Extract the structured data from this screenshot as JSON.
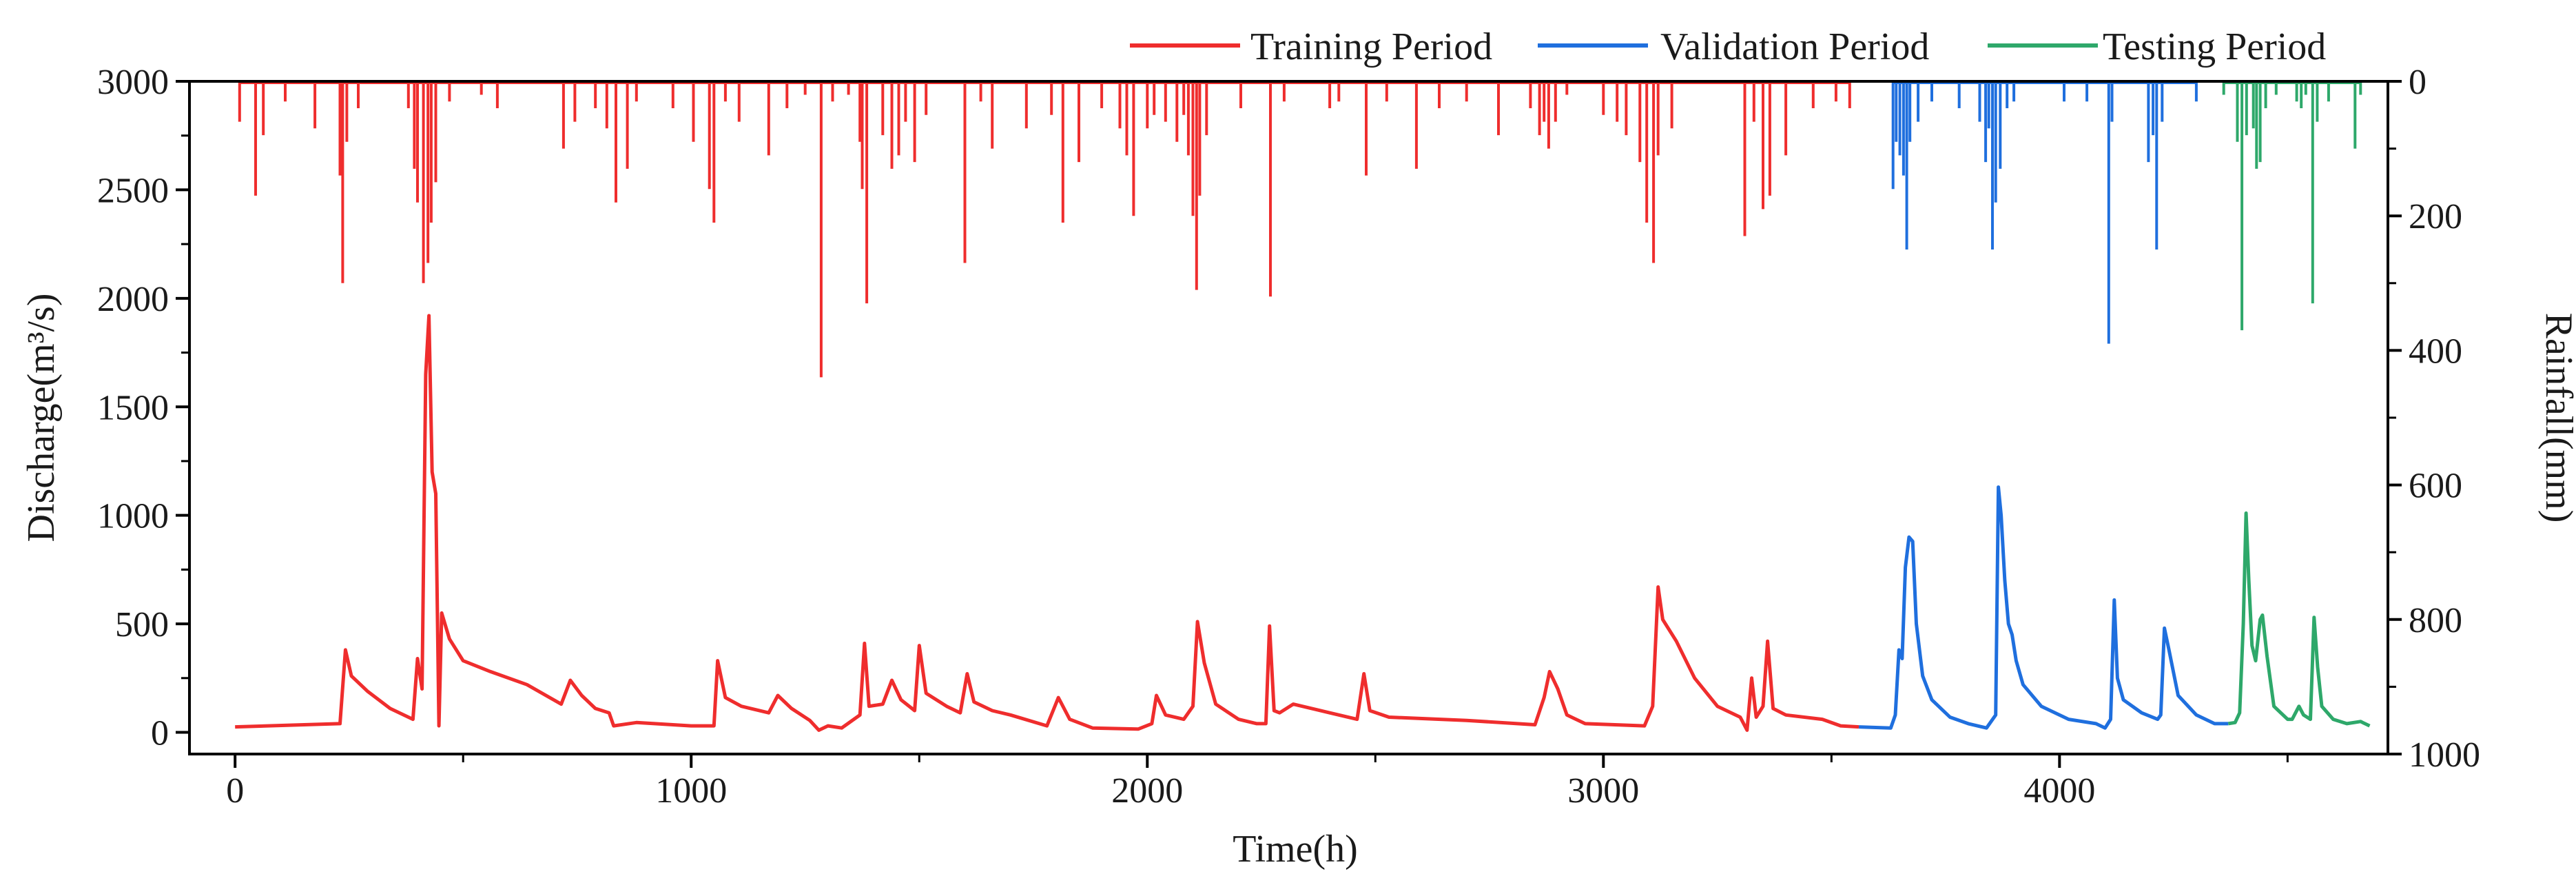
{
  "chart_data": {
    "type": "line",
    "title": "",
    "xlabel": "Time(h)",
    "ylabel_left": "Discharge(m³/s)",
    "ylabel_right": "Rainfall(mm)",
    "xlim": [
      -100,
      4720
    ],
    "ylim_left": [
      -100,
      3000
    ],
    "ylim_right_reversed": [
      1000,
      0
    ],
    "x_ticks": [
      0,
      1000,
      2000,
      3000,
      4000
    ],
    "y_left_ticks": [
      0,
      500,
      1000,
      1500,
      2000,
      2500,
      3000
    ],
    "y_right_ticks": [
      0,
      200,
      400,
      600,
      800,
      1000
    ],
    "legend_position": "top",
    "series": [
      {
        "name": "Training Period",
        "color": "#ef2d2d",
        "discharge": [
          [
            0,
            25
          ],
          [
            230,
            40
          ],
          [
            242,
            380
          ],
          [
            255,
            260
          ],
          [
            290,
            190
          ],
          [
            340,
            110
          ],
          [
            390,
            60
          ],
          [
            400,
            340
          ],
          [
            410,
            200
          ],
          [
            418,
            1650
          ],
          [
            425,
            1920
          ],
          [
            432,
            1200
          ],
          [
            440,
            1100
          ],
          [
            447,
            30
          ],
          [
            453,
            550
          ],
          [
            470,
            430
          ],
          [
            500,
            330
          ],
          [
            560,
            280
          ],
          [
            640,
            220
          ],
          [
            715,
            130
          ],
          [
            735,
            240
          ],
          [
            760,
            170
          ],
          [
            790,
            110
          ],
          [
            820,
            90
          ],
          [
            830,
            30
          ],
          [
            880,
            45
          ],
          [
            1000,
            30
          ],
          [
            1050,
            30
          ],
          [
            1058,
            330
          ],
          [
            1075,
            160
          ],
          [
            1110,
            120
          ],
          [
            1170,
            90
          ],
          [
            1190,
            170
          ],
          [
            1220,
            110
          ],
          [
            1260,
            55
          ],
          [
            1280,
            10
          ],
          [
            1300,
            30
          ],
          [
            1330,
            20
          ],
          [
            1370,
            80
          ],
          [
            1380,
            410
          ],
          [
            1390,
            120
          ],
          [
            1420,
            130
          ],
          [
            1440,
            240
          ],
          [
            1460,
            150
          ],
          [
            1490,
            100
          ],
          [
            1500,
            400
          ],
          [
            1515,
            180
          ],
          [
            1560,
            120
          ],
          [
            1590,
            90
          ],
          [
            1605,
            270
          ],
          [
            1620,
            140
          ],
          [
            1660,
            100
          ],
          [
            1700,
            80
          ],
          [
            1780,
            30
          ],
          [
            1805,
            160
          ],
          [
            1830,
            60
          ],
          [
            1880,
            20
          ],
          [
            1980,
            15
          ],
          [
            2010,
            40
          ],
          [
            2020,
            170
          ],
          [
            2040,
            80
          ],
          [
            2080,
            60
          ],
          [
            2100,
            120
          ],
          [
            2110,
            510
          ],
          [
            2125,
            320
          ],
          [
            2150,
            130
          ],
          [
            2200,
            60
          ],
          [
            2240,
            40
          ],
          [
            2260,
            40
          ],
          [
            2268,
            490
          ],
          [
            2278,
            100
          ],
          [
            2290,
            90
          ],
          [
            2320,
            130
          ],
          [
            2400,
            90
          ],
          [
            2460,
            60
          ],
          [
            2475,
            270
          ],
          [
            2488,
            100
          ],
          [
            2530,
            70
          ],
          [
            2700,
            55
          ],
          [
            2850,
            35
          ],
          [
            2870,
            160
          ],
          [
            2882,
            280
          ],
          [
            2900,
            200
          ],
          [
            2920,
            80
          ],
          [
            2960,
            40
          ],
          [
            3090,
            30
          ],
          [
            3108,
            120
          ],
          [
            3120,
            670
          ],
          [
            3130,
            520
          ],
          [
            3160,
            420
          ],
          [
            3200,
            250
          ],
          [
            3250,
            120
          ],
          [
            3300,
            70
          ],
          [
            3315,
            10
          ],
          [
            3325,
            250
          ],
          [
            3335,
            70
          ],
          [
            3350,
            120
          ],
          [
            3360,
            420
          ],
          [
            3372,
            110
          ],
          [
            3400,
            80
          ],
          [
            3480,
            60
          ],
          [
            3520,
            30
          ],
          [
            3560,
            25
          ]
        ],
        "rain_events": [
          [
            10,
            60
          ],
          [
            45,
            170
          ],
          [
            62,
            80
          ],
          [
            110,
            30
          ],
          [
            175,
            70
          ],
          [
            230,
            140
          ],
          [
            236,
            300
          ],
          [
            245,
            90
          ],
          [
            270,
            40
          ],
          [
            380,
            40
          ],
          [
            393,
            130
          ],
          [
            400,
            180
          ],
          [
            413,
            300
          ],
          [
            423,
            270
          ],
          [
            430,
            210
          ],
          [
            440,
            150
          ],
          [
            470,
            30
          ],
          [
            540,
            20
          ],
          [
            575,
            40
          ],
          [
            720,
            100
          ],
          [
            745,
            60
          ],
          [
            790,
            40
          ],
          [
            815,
            70
          ],
          [
            835,
            180
          ],
          [
            860,
            130
          ],
          [
            880,
            30
          ],
          [
            960,
            40
          ],
          [
            1005,
            90
          ],
          [
            1040,
            160
          ],
          [
            1050,
            210
          ],
          [
            1075,
            30
          ],
          [
            1105,
            60
          ],
          [
            1170,
            110
          ],
          [
            1210,
            40
          ],
          [
            1250,
            20
          ],
          [
            1285,
            440
          ],
          [
            1310,
            30
          ],
          [
            1345,
            20
          ],
          [
            1370,
            90
          ],
          [
            1375,
            160
          ],
          [
            1385,
            330
          ],
          [
            1420,
            80
          ],
          [
            1440,
            130
          ],
          [
            1455,
            110
          ],
          [
            1470,
            60
          ],
          [
            1490,
            120
          ],
          [
            1515,
            50
          ],
          [
            1600,
            270
          ],
          [
            1635,
            30
          ],
          [
            1660,
            100
          ],
          [
            1735,
            70
          ],
          [
            1790,
            50
          ],
          [
            1815,
            210
          ],
          [
            1850,
            120
          ],
          [
            1900,
            40
          ],
          [
            1940,
            70
          ],
          [
            1955,
            110
          ],
          [
            1970,
            200
          ],
          [
            2000,
            70
          ],
          [
            2015,
            50
          ],
          [
            2040,
            60
          ],
          [
            2065,
            90
          ],
          [
            2080,
            50
          ],
          [
            2090,
            110
          ],
          [
            2100,
            200
          ],
          [
            2108,
            310
          ],
          [
            2115,
            170
          ],
          [
            2130,
            80
          ],
          [
            2205,
            40
          ],
          [
            2270,
            320
          ],
          [
            2300,
            30
          ],
          [
            2400,
            40
          ],
          [
            2420,
            30
          ],
          [
            2480,
            140
          ],
          [
            2525,
            30
          ],
          [
            2590,
            130
          ],
          [
            2640,
            40
          ],
          [
            2700,
            30
          ],
          [
            2770,
            80
          ],
          [
            2840,
            40
          ],
          [
            2860,
            80
          ],
          [
            2870,
            60
          ],
          [
            2880,
            100
          ],
          [
            2895,
            60
          ],
          [
            2920,
            20
          ],
          [
            3000,
            50
          ],
          [
            3030,
            60
          ],
          [
            3050,
            80
          ],
          [
            3080,
            120
          ],
          [
            3095,
            210
          ],
          [
            3110,
            270
          ],
          [
            3120,
            110
          ],
          [
            3150,
            70
          ],
          [
            3310,
            230
          ],
          [
            3330,
            60
          ],
          [
            3350,
            190
          ],
          [
            3365,
            170
          ],
          [
            3400,
            110
          ],
          [
            3460,
            40
          ],
          [
            3510,
            30
          ],
          [
            3540,
            40
          ]
        ]
      },
      {
        "name": "Validation Period",
        "color": "#1f6fde",
        "discharge": [
          [
            3560,
            25
          ],
          [
            3630,
            20
          ],
          [
            3640,
            80
          ],
          [
            3648,
            380
          ],
          [
            3655,
            340
          ],
          [
            3662,
            760
          ],
          [
            3670,
            900
          ],
          [
            3678,
            880
          ],
          [
            3686,
            500
          ],
          [
            3700,
            260
          ],
          [
            3720,
            150
          ],
          [
            3760,
            70
          ],
          [
            3800,
            40
          ],
          [
            3840,
            20
          ],
          [
            3860,
            80
          ],
          [
            3866,
            1130
          ],
          [
            3872,
            1000
          ],
          [
            3880,
            700
          ],
          [
            3888,
            500
          ],
          [
            3896,
            450
          ],
          [
            3905,
            330
          ],
          [
            3920,
            220
          ],
          [
            3960,
            120
          ],
          [
            4020,
            60
          ],
          [
            4080,
            40
          ],
          [
            4100,
            20
          ],
          [
            4112,
            60
          ],
          [
            4120,
            610
          ],
          [
            4127,
            250
          ],
          [
            4140,
            150
          ],
          [
            4180,
            90
          ],
          [
            4215,
            60
          ],
          [
            4222,
            80
          ],
          [
            4230,
            480
          ],
          [
            4240,
            380
          ],
          [
            4260,
            170
          ],
          [
            4300,
            80
          ],
          [
            4340,
            40
          ],
          [
            4370,
            40
          ]
        ],
        "rain_events": [
          [
            3635,
            160
          ],
          [
            3642,
            90
          ],
          [
            3650,
            110
          ],
          [
            3658,
            140
          ],
          [
            3665,
            250
          ],
          [
            3672,
            90
          ],
          [
            3690,
            60
          ],
          [
            3720,
            30
          ],
          [
            3780,
            40
          ],
          [
            3825,
            60
          ],
          [
            3838,
            120
          ],
          [
            3845,
            70
          ],
          [
            3853,
            250
          ],
          [
            3860,
            180
          ],
          [
            3870,
            130
          ],
          [
            3885,
            40
          ],
          [
            3900,
            30
          ],
          [
            4010,
            30
          ],
          [
            4060,
            30
          ],
          [
            4108,
            390
          ],
          [
            4115,
            60
          ],
          [
            4195,
            120
          ],
          [
            4205,
            80
          ],
          [
            4213,
            250
          ],
          [
            4225,
            60
          ],
          [
            4300,
            30
          ]
        ]
      },
      {
        "name": "Testing Period",
        "color": "#2ea86a",
        "discharge": [
          [
            4370,
            40
          ],
          [
            4385,
            45
          ],
          [
            4395,
            90
          ],
          [
            4403,
            500
          ],
          [
            4409,
            1010
          ],
          [
            4415,
            700
          ],
          [
            4422,
            400
          ],
          [
            4430,
            330
          ],
          [
            4440,
            520
          ],
          [
            4445,
            540
          ],
          [
            4455,
            350
          ],
          [
            4470,
            120
          ],
          [
            4500,
            60
          ],
          [
            4510,
            60
          ],
          [
            4525,
            120
          ],
          [
            4535,
            80
          ],
          [
            4550,
            60
          ],
          [
            4558,
            530
          ],
          [
            4566,
            300
          ],
          [
            4575,
            120
          ],
          [
            4600,
            60
          ],
          [
            4630,
            40
          ],
          [
            4660,
            50
          ],
          [
            4680,
            30
          ]
        ],
        "rain_events": [
          [
            4360,
            20
          ],
          [
            4390,
            90
          ],
          [
            4400,
            370
          ],
          [
            4410,
            80
          ],
          [
            4425,
            70
          ],
          [
            4432,
            130
          ],
          [
            4440,
            120
          ],
          [
            4452,
            40
          ],
          [
            4475,
            20
          ],
          [
            4520,
            30
          ],
          [
            4530,
            40
          ],
          [
            4540,
            20
          ],
          [
            4555,
            330
          ],
          [
            4565,
            60
          ],
          [
            4590,
            30
          ],
          [
            4648,
            100
          ],
          [
            4660,
            20
          ]
        ]
      }
    ]
  }
}
